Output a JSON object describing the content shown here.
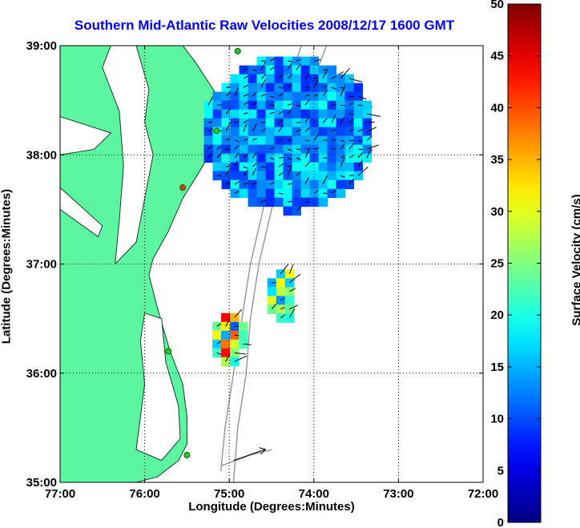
{
  "chart_data": {
    "type": "heatmap",
    "title": "Southern Mid-Atlantic Raw Velocities 2008/12/17 1600 GMT",
    "xlabel": "Longitude (Degrees:Minutes)",
    "ylabel": "Latitude (Degrees:Minutes)",
    "colorbar_label": "Surface Velocity (cm/s)",
    "xlim": [
      -77,
      -72
    ],
    "ylim": [
      35,
      39
    ],
    "x_ticks": [
      "77:00",
      "76:00",
      "75:00",
      "74:00",
      "73:00",
      "72:00"
    ],
    "y_ticks": [
      "39:00",
      "38:00",
      "37:00",
      "36:00",
      "35:00"
    ],
    "colorbar_range": [
      0,
      50
    ],
    "colorbar_ticks": [
      "50",
      "45",
      "40",
      "35",
      "30",
      "25",
      "20",
      "15",
      "10",
      "5",
      "0"
    ],
    "grid": "dotted",
    "colors": {
      "land": "#5cf5a0",
      "title": "#0000ff",
      "bathymetry": "#9a9a9a",
      "vectors": "#000000"
    },
    "velocity_regions": [
      {
        "lon_range": [
          -75.3,
          -73.3
        ],
        "lat_range": [
          37.5,
          38.9
        ],
        "speed_range": [
          8,
          20
        ]
      },
      {
        "lon_range": [
          -74.55,
          -74.2
        ],
        "lat_range": [
          36.45,
          36.95
        ],
        "speed_range": [
          12,
          35
        ]
      },
      {
        "lon_range": [
          -75.2,
          -74.8
        ],
        "lat_range": [
          36.1,
          36.55
        ],
        "speed_range": [
          10,
          48
        ]
      }
    ],
    "stations": [
      {
        "lon": -74.9,
        "lat": 38.95,
        "color": "#22cc22"
      },
      {
        "lon": -75.15,
        "lat": 38.22,
        "color": "#22cc22"
      },
      {
        "lon": -75.55,
        "lat": 37.7,
        "color": "#ff3300"
      },
      {
        "lon": -75.72,
        "lat": 36.2,
        "color": "#22cc22"
      },
      {
        "lon": -75.5,
        "lat": 35.25,
        "color": "#22cc22"
      }
    ],
    "reference_vector_label": ""
  }
}
